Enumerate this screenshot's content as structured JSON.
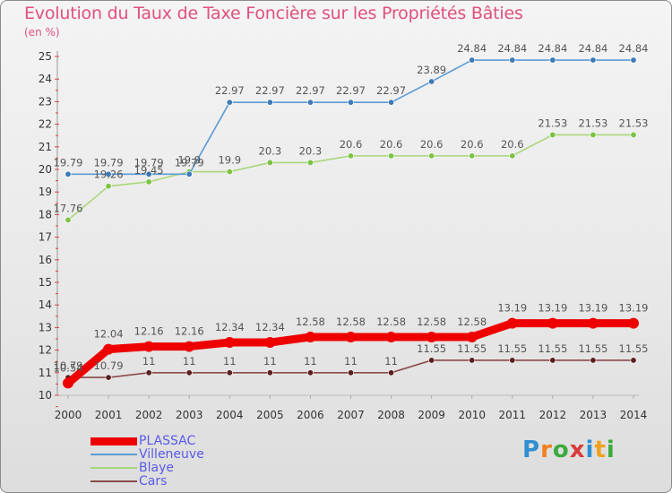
{
  "title": "Evolution du Taux de Taxe Foncière sur les Propriétés Bâties",
  "unit_label": "(en %)",
  "brand": {
    "text": "Proxiti",
    "letters": [
      "P",
      "r",
      "o",
      "x",
      "i",
      "t",
      "i"
    ],
    "colors": [
      "#2f8fd0",
      "#f07f1e",
      "#3caa3c",
      "#d83b3b",
      "#2f8fd0",
      "#f0a21e",
      "#3caa3c"
    ]
  },
  "chart_data": {
    "type": "line",
    "title": "Evolution du Taux de Taxe Foncière sur les Propriétés Bâties",
    "ylabel": "(en %)",
    "xlabel": "",
    "categories": [
      "2000",
      "2001",
      "2002",
      "2003",
      "2004",
      "2005",
      "2006",
      "2007",
      "2008",
      "2009",
      "2010",
      "2011",
      "2012",
      "2013",
      "2014"
    ],
    "ylim": [
      10,
      25
    ],
    "yticks": [
      10,
      11,
      12,
      13,
      14,
      15,
      16,
      17,
      18,
      19,
      20,
      21,
      22,
      23,
      24,
      25
    ],
    "series": [
      {
        "name": "PLASSAC",
        "color": "#ee0000",
        "emphasis": true,
        "values": [
          10.54,
          12.04,
          12.16,
          12.16,
          12.34,
          12.34,
          12.58,
          12.58,
          12.58,
          12.58,
          12.58,
          13.19,
          13.19,
          13.19,
          13.19
        ],
        "labels": [
          "10.54",
          "12.04",
          "12.16",
          "12.16",
          "12.34",
          "12.34",
          "12.58",
          "12.58",
          "12.58",
          "12.58",
          "12.58",
          "13.19",
          "13.19",
          "13.19",
          "13.19"
        ]
      },
      {
        "name": "Villeneuve",
        "color": "#5b9bd5",
        "marker": "#3d7ab8",
        "values": [
          19.79,
          19.79,
          19.79,
          19.79,
          22.97,
          22.97,
          22.97,
          22.97,
          22.97,
          23.89,
          24.84,
          24.84,
          24.84,
          24.84,
          24.84
        ],
        "labels": [
          "19.79",
          "19.79",
          "19.79",
          "19.79",
          "22.97",
          "22.97",
          "22.97",
          "22.97",
          "22.97",
          "23.89",
          "24.84",
          "24.84",
          "24.84",
          "24.84",
          "24.84"
        ]
      },
      {
        "name": "Blaye",
        "color": "#a9d77a",
        "marker": "#7cc243",
        "values": [
          17.76,
          19.26,
          19.45,
          19.9,
          19.9,
          20.3,
          20.3,
          20.6,
          20.6,
          20.6,
          20.6,
          20.6,
          21.53,
          21.53,
          21.53
        ],
        "labels": [
          "17.76",
          "19.26",
          "19.45",
          "19.9",
          "19.9",
          "20.3",
          "20.3",
          "20.6",
          "20.6",
          "20.6",
          "20.6",
          "20.6",
          "21.53",
          "21.53",
          "21.53"
        ]
      },
      {
        "name": "Cars",
        "color": "#8b4a4a",
        "marker": "#5a1e1e",
        "values": [
          10.79,
          10.79,
          11,
          11,
          11,
          11,
          11,
          11,
          11,
          11.55,
          11.55,
          11.55,
          11.55,
          11.55,
          11.55
        ],
        "labels": [
          "10.79",
          "10.79",
          "11",
          "11",
          "11",
          "11",
          "11",
          "11",
          "11",
          "11.55",
          "11.55",
          "11.55",
          "11.55",
          "11.55",
          "11.55"
        ]
      }
    ],
    "legend_position": "bottom-left"
  }
}
